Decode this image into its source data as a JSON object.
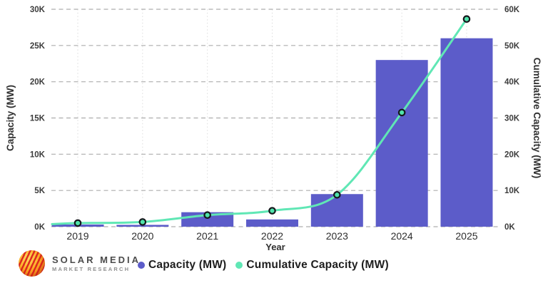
{
  "chart_data": {
    "type": "bar",
    "subtype": "bar-line-combo",
    "title": "",
    "xlabel": "Year",
    "ylabel_left": "Capacity (MW)",
    "ylabel_right": "Cumulative Capacity (MW)",
    "categories": [
      "2019",
      "2020",
      "2021",
      "2022",
      "2023",
      "2024",
      "2025"
    ],
    "series": [
      {
        "name": "Capacity (MW)",
        "render": "bar",
        "axis": "left",
        "color": "#5c5cc9",
        "values": [
          300,
          250,
          2000,
          1000,
          4500,
          23000,
          26000
        ]
      },
      {
        "name": "Cumulative Capacity (MW)",
        "render": "line",
        "axis": "right",
        "color": "#60e7b5",
        "marker_fill": "#4fe3aa",
        "marker_stroke": "#15171c",
        "values": [
          1000,
          1300,
          3200,
          4400,
          8800,
          31500,
          57300
        ]
      }
    ],
    "y_left": {
      "min": 0,
      "max": 30000,
      "step": 5000,
      "tick_labels": [
        "0K",
        "5K",
        "10K",
        "15K",
        "20K",
        "25K",
        "30K"
      ]
    },
    "y_right": {
      "min": 0,
      "max": 60000,
      "step": 10000,
      "tick_labels": [
        "0K",
        "10K",
        "20K",
        "30K",
        "40K",
        "50K",
        "60K"
      ]
    },
    "grid": {
      "horizontal": "dashed",
      "vertical": "dotted",
      "h_color": "#adadad",
      "v_color": "#dcdcdc"
    },
    "legend_position": "bottom"
  },
  "legend": {
    "items": [
      {
        "label": "Capacity (MW)",
        "color": "#5c5cc9"
      },
      {
        "label": "Cumulative Capacity (MW)",
        "color": "#60e7b5"
      }
    ]
  },
  "branding": {
    "name_line1": "SOLAR MEDIA",
    "name_line2": "MARKET RESEARCH"
  }
}
